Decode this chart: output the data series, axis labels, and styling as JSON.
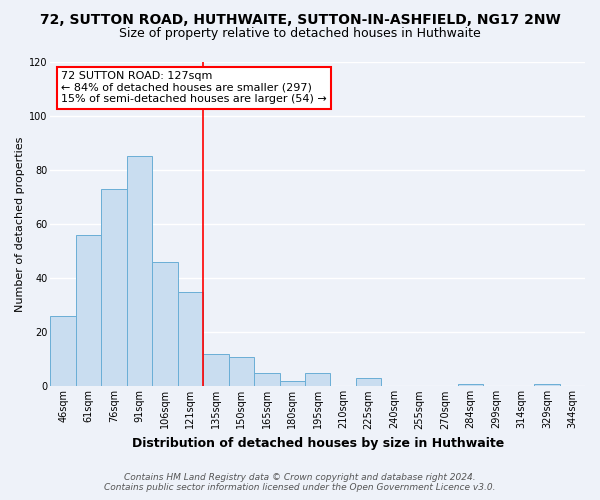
{
  "title": "72, SUTTON ROAD, HUTHWAITE, SUTTON-IN-ASHFIELD, NG17 2NW",
  "subtitle": "Size of property relative to detached houses in Huthwaite",
  "xlabel": "Distribution of detached houses by size in Huthwaite",
  "ylabel": "Number of detached properties",
  "bar_labels": [
    "46sqm",
    "61sqm",
    "76sqm",
    "91sqm",
    "106sqm",
    "121sqm",
    "135sqm",
    "150sqm",
    "165sqm",
    "180sqm",
    "195sqm",
    "210sqm",
    "225sqm",
    "240sqm",
    "255sqm",
    "270sqm",
    "284sqm",
    "299sqm",
    "314sqm",
    "329sqm",
    "344sqm"
  ],
  "bar_values": [
    26,
    56,
    73,
    85,
    46,
    35,
    12,
    11,
    5,
    2,
    5,
    0,
    3,
    0,
    0,
    0,
    1,
    0,
    0,
    1,
    0
  ],
  "bar_color": "#c9ddf0",
  "bar_edge_color": "#6aaed6",
  "ylim": [
    0,
    120
  ],
  "yticks": [
    0,
    20,
    40,
    60,
    80,
    100,
    120
  ],
  "property_label": "72 SUTTON ROAD: 127sqm",
  "annotation_line1": "← 84% of detached houses are smaller (297)",
  "annotation_line2": "15% of semi-detached houses are larger (54) →",
  "footer_line1": "Contains HM Land Registry data © Crown copyright and database right 2024.",
  "footer_line2": "Contains public sector information licensed under the Open Government Licence v3.0.",
  "background_color": "#eef2f9",
  "plot_background": "#eef2f9",
  "grid_color": "#ffffff",
  "title_fontsize": 10,
  "subtitle_fontsize": 9,
  "ylabel_fontsize": 8,
  "xlabel_fontsize": 9,
  "tick_fontsize": 7,
  "annot_fontsize": 8,
  "footer_fontsize": 6.5,
  "vline_x": 5.5
}
